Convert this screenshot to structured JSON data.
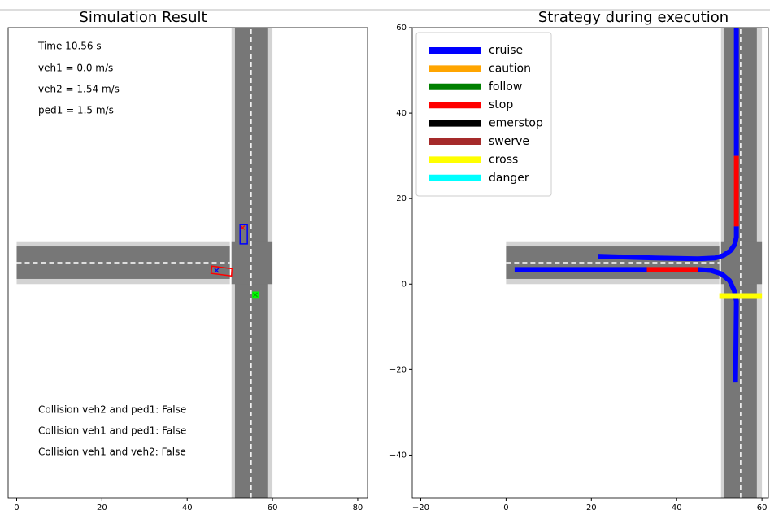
{
  "chart_data": [
    {
      "type": "scene",
      "title": "Simulation Result",
      "xlim": [
        -2,
        82.3
      ],
      "ylim": [
        -50,
        60
      ],
      "xticks": [
        0,
        20,
        40,
        60,
        80
      ],
      "roads": [
        {
          "x": [
            0,
            50
          ],
          "y": [
            0,
            10
          ],
          "color": "#d3d3d3"
        },
        {
          "x": [
            50.4,
            60
          ],
          "y": [
            -50,
            60
          ],
          "color": "#d3d3d3"
        },
        {
          "x": [
            0,
            50
          ],
          "y": [
            1.2,
            8.8
          ],
          "color": "#777777"
        },
        {
          "x": [
            51.2,
            58.8
          ],
          "y": [
            -50,
            60
          ],
          "color": "#777777"
        },
        {
          "x": [
            50.4,
            60
          ],
          "y": [
            0,
            10
          ],
          "color": "#777777"
        }
      ],
      "lane_lines": [
        {
          "x": [
            0,
            50
          ],
          "y": [
            5,
            5
          ]
        },
        {
          "x": [
            55,
            55
          ],
          "y": [
            -50,
            60
          ]
        }
      ],
      "vehicles": [
        {
          "color": "#0000ff",
          "x": [
            52.4,
            54.1,
            54.1,
            52.4
          ],
          "y": [
            9.4,
            9.4,
            13.9,
            13.9
          ]
        },
        {
          "color": "#ff0000",
          "x": [
            45.8,
            50.5,
            50.4,
            45.6
          ],
          "y": [
            4.2,
            3.6,
            1.9,
            2.5
          ]
        },
        {
          "color": "#00ff00",
          "x": [
            55.4,
            56.6,
            56.6,
            55.4
          ],
          "y": [
            -3.1,
            -3.1,
            -1.9,
            -1.9
          ]
        }
      ],
      "markers": [
        {
          "color": "#0000ff",
          "x": 46.9,
          "y": 3.2
        },
        {
          "color": "#ff0000",
          "x": 53.0,
          "y": 13.2
        },
        {
          "color": "#00aa00",
          "x": 56,
          "y": -2.5
        }
      ],
      "annotations": [
        "Time 10.56 s",
        "veh1 = 0.0 m/s",
        "veh2 = 1.54 m/s",
        "ped1 = 1.5 m/s",
        "Collision veh2 and ped1: False",
        "Collision veh1 and ped1: False",
        "Collision veh1 and veh2: False"
      ]
    },
    {
      "type": "line",
      "title": "Strategy during execution",
      "xlim": [
        -22,
        61.5
      ],
      "ylim": [
        -50,
        60
      ],
      "xticks": [
        {
          "value": -20,
          "label": "−20"
        },
        0,
        20,
        40,
        60
      ],
      "yticks": [
        {
          "value": -40,
          "label": "−40"
        },
        {
          "value": -20,
          "label": "−20"
        },
        0,
        20,
        40,
        60
      ],
      "roads": [
        {
          "x": [
            0,
            50
          ],
          "y": [
            0,
            10
          ],
          "color": "#d3d3d3"
        },
        {
          "x": [
            50.4,
            60
          ],
          "y": [
            -50,
            60
          ],
          "color": "#d3d3d3"
        },
        {
          "x": [
            0,
            50
          ],
          "y": [
            1.2,
            8.8
          ],
          "color": "#777777"
        },
        {
          "x": [
            51.2,
            58.8
          ],
          "y": [
            -50,
            60
          ],
          "color": "#777777"
        },
        {
          "x": [
            50.4,
            60
          ],
          "y": [
            0,
            10
          ],
          "color": "#777777"
        }
      ],
      "lane_lines": [
        {
          "x": [
            0,
            50
          ],
          "y": [
            5,
            5
          ]
        },
        {
          "x": [
            55,
            55
          ],
          "y": [
            -50,
            60
          ]
        }
      ],
      "legend": [
        {
          "name": "cruise",
          "color": "#0000ff"
        },
        {
          "name": "caution",
          "color": "#ffa500"
        },
        {
          "name": "follow",
          "color": "#008000"
        },
        {
          "name": "stop",
          "color": "#ff0000"
        },
        {
          "name": "emerstop",
          "color": "#000000"
        },
        {
          "name": "swerve",
          "color": "#a52a2a"
        },
        {
          "name": "cross",
          "color": "#ffff00"
        },
        {
          "name": "danger",
          "color": "#00ffff"
        }
      ],
      "series": [
        {
          "color": "#0000ff",
          "x": [
            54,
            54
          ],
          "y": [
            60,
            30
          ]
        },
        {
          "color": "#ff0000",
          "x": [
            54,
            54
          ],
          "y": [
            30,
            13.5
          ]
        },
        {
          "color": "#0000ff",
          "x": [
            54,
            54,
            53.6,
            52.6,
            51,
            49,
            45,
            35,
            21.5
          ],
          "y": [
            13.5,
            11,
            9.2,
            7.8,
            6.7,
            6.1,
            5.9,
            6.1,
            6.5
          ]
        },
        {
          "color": "#0000ff",
          "x": [
            2,
            33
          ],
          "y": [
            3.4,
            3.4
          ]
        },
        {
          "color": "#ff0000",
          "x": [
            33,
            45
          ],
          "y": [
            3.4,
            3.4
          ]
        },
        {
          "color": "#0000ff",
          "x": [
            45,
            48,
            50.5,
            52.4,
            53.5,
            54,
            53.9,
            53.8
          ],
          "y": [
            3.4,
            3.2,
            2.4,
            0.8,
            -1.5,
            -4,
            -14,
            -23
          ]
        },
        {
          "color": "#ffff00",
          "x": [
            50,
            60
          ],
          "y": [
            -2.7,
            -2.7
          ]
        }
      ]
    }
  ]
}
